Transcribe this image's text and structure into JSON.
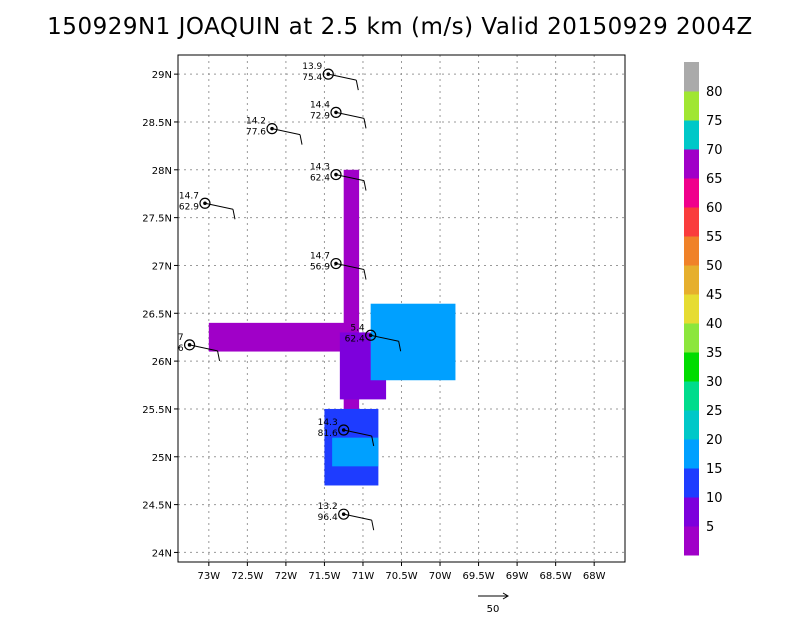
{
  "title": "150929N1 JOAQUIN at 2.5 km (m/s) Valid 20150929 2004Z",
  "chart_data": {
    "type": "heatmap",
    "title": "150929N1 JOAQUIN at 2.5 km (m/s) Valid 20150929 2004Z",
    "xlabel": "",
    "ylabel": "",
    "xlim": [
      -73.4,
      -67.6
    ],
    "ylim": [
      23.9,
      29.2
    ],
    "x_ticks": [
      {
        "v": -73.0,
        "label": "73W"
      },
      {
        "v": -72.5,
        "label": "72.5W"
      },
      {
        "v": -72.0,
        "label": "72W"
      },
      {
        "v": -71.5,
        "label": "71.5W"
      },
      {
        "v": -71.0,
        "label": "71W"
      },
      {
        "v": -70.5,
        "label": "70.5W"
      },
      {
        "v": -70.0,
        "label": "70W"
      },
      {
        "v": -69.5,
        "label": "69.5W"
      },
      {
        "v": -69.0,
        "label": "69W"
      },
      {
        "v": -68.5,
        "label": "68.5W"
      },
      {
        "v": -68.0,
        "label": "68W"
      }
    ],
    "y_ticks": [
      {
        "v": 24.0,
        "label": "24N"
      },
      {
        "v": 24.5,
        "label": "24.5N"
      },
      {
        "v": 25.0,
        "label": "25N"
      },
      {
        "v": 25.5,
        "label": "25.5N"
      },
      {
        "v": 26.0,
        "label": "26N"
      },
      {
        "v": 26.5,
        "label": "26.5N"
      },
      {
        "v": 27.0,
        "label": "27N"
      },
      {
        "v": 27.5,
        "label": "27.5N"
      },
      {
        "v": 28.0,
        "label": "28N"
      },
      {
        "v": 28.5,
        "label": "28.5N"
      },
      {
        "v": 29.0,
        "label": "29N"
      }
    ],
    "grid": true,
    "colorbar": {
      "labels": [
        "5",
        "10",
        "15",
        "20",
        "25",
        "30",
        "35",
        "40",
        "45",
        "50",
        "55",
        "60",
        "65",
        "70",
        "75",
        "80"
      ],
      "colors": [
        "#a000c8",
        "#7d00dc",
        "#1e3cff",
        "#00a0ff",
        "#00c8c8",
        "#00dc8c",
        "#00dc00",
        "#8ce63c",
        "#e6dc32",
        "#e6af2d",
        "#f08228",
        "#fa3c3c",
        "#f0008c",
        "#a000c8",
        "#00c8c8",
        "#a0e632",
        "#aaaaaa"
      ]
    },
    "swaths": [
      {
        "lon": [
          -71.25,
          -71.05
        ],
        "lat": [
          25.3,
          28.0
        ],
        "level": "5"
      },
      {
        "lon": [
          -73.0,
          -71.1
        ],
        "lat": [
          26.1,
          26.4
        ],
        "level": "5"
      },
      {
        "lon": [
          -71.3,
          -70.7
        ],
        "lat": [
          25.6,
          26.3
        ],
        "level": "10"
      },
      {
        "lon": [
          -70.9,
          -69.8
        ],
        "lat": [
          25.8,
          26.6
        ],
        "level": "20"
      },
      {
        "lon": [
          -71.5,
          -70.8
        ],
        "lat": [
          24.7,
          25.5
        ],
        "level": "15"
      },
      {
        "lon": [
          -71.4,
          -70.8
        ],
        "lat": [
          24.9,
          25.2
        ],
        "level": "20"
      }
    ],
    "observations": [
      {
        "lon": -71.45,
        "lat": 29.0,
        "top": "13.9",
        "bottom": "75.4"
      },
      {
        "lon": -71.35,
        "lat": 28.6,
        "top": "14.4",
        "bottom": "72.9"
      },
      {
        "lon": -72.18,
        "lat": 28.43,
        "top": "14.2",
        "bottom": "77.6"
      },
      {
        "lon": -71.35,
        "lat": 27.95,
        "top": "14.3",
        "bottom": "62.4"
      },
      {
        "lon": -73.05,
        "lat": 27.65,
        "top": "14.7",
        "bottom": "62.9"
      },
      {
        "lon": -71.35,
        "lat": 27.02,
        "top": "14.7",
        "bottom": "56.9"
      },
      {
        "lon": -73.25,
        "lat": 26.17,
        "top": "7",
        "bottom": "6"
      },
      {
        "lon": -70.9,
        "lat": 26.27,
        "top": "5.4",
        "bottom": "62.4"
      },
      {
        "lon": -71.25,
        "lat": 25.28,
        "top": "14.3",
        "bottom": "81.6"
      },
      {
        "lon": -71.25,
        "lat": 24.4,
        "top": "13.2",
        "bottom": "96.4"
      }
    ],
    "reference_vector": {
      "label": "50"
    }
  }
}
